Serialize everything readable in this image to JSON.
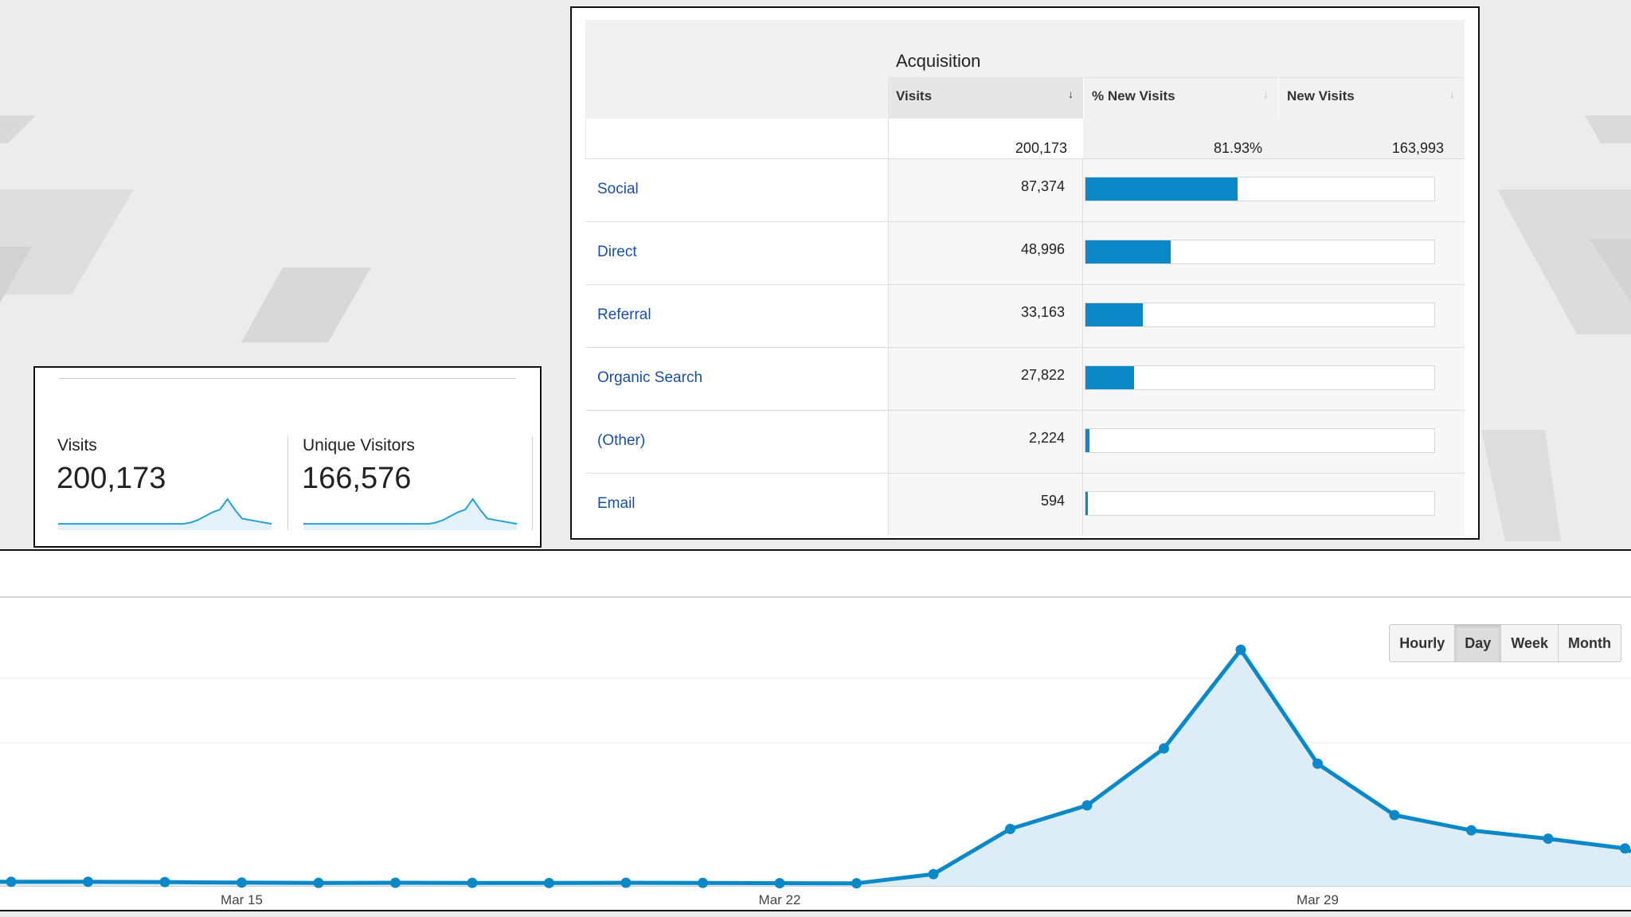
{
  "summary": {
    "metrics": [
      {
        "label": "Visits",
        "value": "200,173",
        "trend": [
          3,
          3,
          3,
          3,
          3,
          3,
          3,
          3,
          3,
          3,
          3,
          3,
          3,
          3,
          3,
          3,
          3,
          3,
          4,
          6,
          9,
          12,
          14,
          22,
          14,
          7,
          6,
          5,
          4,
          3
        ]
      },
      {
        "label": "Unique Visitors",
        "value": "166,576",
        "trend": [
          3,
          3,
          3,
          3,
          3,
          3,
          3,
          3,
          3,
          3,
          3,
          3,
          3,
          3,
          3,
          3,
          3,
          3,
          4,
          6,
          9,
          12,
          14,
          22,
          14,
          7,
          6,
          5,
          4,
          3
        ]
      }
    ]
  },
  "acquisition": {
    "group_title": "Acquisition",
    "columns": {
      "visits": "Visits",
      "pct_new_visits": "% New Visits",
      "new_visits": "New Visits"
    },
    "totals": {
      "visits": "200,173",
      "pct_new_visits": "81.93%",
      "new_visits": "163,993"
    },
    "rows": [
      {
        "channel": "Social",
        "visits": "87,374",
        "visits_num": 87374
      },
      {
        "channel": "Direct",
        "visits": "48,996",
        "visits_num": 48996
      },
      {
        "channel": "Referral",
        "visits": "33,163",
        "visits_num": 33163
      },
      {
        "channel": "Organic Search",
        "visits": "27,822",
        "visits_num": 27822
      },
      {
        "channel": "(Other)",
        "visits": "2,224",
        "visits_num": 2224
      },
      {
        "channel": "Email",
        "visits": "594",
        "visits_num": 594
      }
    ],
    "bar_color": "#0a88c8",
    "link_color": "#1a4fa8"
  },
  "granularity": {
    "options": [
      "Hourly",
      "Day",
      "Week",
      "Month"
    ],
    "active": "Day"
  },
  "chart_data": {
    "type": "area",
    "x_ticks": [
      "Mar 15",
      "Mar 22",
      "Mar 29"
    ],
    "series": [
      {
        "values": [
          3.0,
          3.0,
          2.8,
          2.4,
          2.2,
          2.3,
          2.2,
          2.1,
          2.3,
          2.2,
          2.0,
          1.9,
          8.5,
          41,
          58,
          99,
          170,
          88,
          51,
          40,
          34,
          27
        ]
      }
    ],
    "ylim": [
      0,
      220
    ],
    "line_color": "#0a88c8",
    "fill_color": "#dcedf8",
    "grid": true
  }
}
